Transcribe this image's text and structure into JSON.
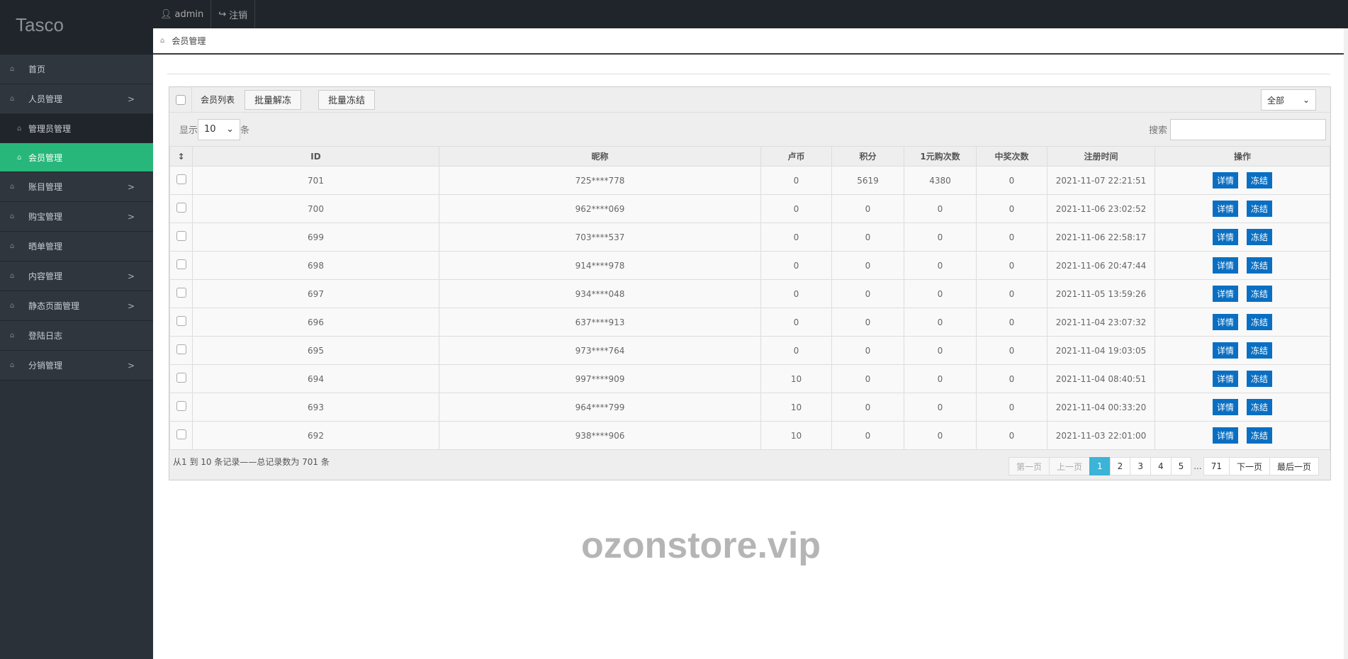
{
  "app": {
    "logo": "Tasco"
  },
  "topbar": {
    "user": "admin",
    "logout": "注销"
  },
  "sidebar": {
    "items": [
      {
        "label": "首页",
        "arrow": ""
      },
      {
        "label": "人员管理",
        "arrow": ">"
      },
      {
        "label": "管理员管理",
        "sub": true
      },
      {
        "label": "会员管理",
        "sub": true,
        "active": true
      },
      {
        "label": "账目管理",
        "arrow": ">"
      },
      {
        "label": "购宝管理",
        "arrow": ">"
      },
      {
        "label": "晒单管理",
        "arrow": ""
      },
      {
        "label": "内容管理",
        "arrow": ">"
      },
      {
        "label": "静态页面管理",
        "arrow": ">"
      },
      {
        "label": "登陆日志",
        "arrow": ""
      },
      {
        "label": "分销管理",
        "arrow": ">"
      }
    ]
  },
  "breadcrumb": "会员管理",
  "panel": {
    "title": "会员列表",
    "unfreeze_all": "批量解冻",
    "freeze_all": "批量冻结",
    "filter": "全部",
    "show_label": "显示",
    "page_size": "10",
    "show_unit": "条",
    "search_label": "搜索",
    "search_value": ""
  },
  "table": {
    "headers": [
      "ID",
      "昵称",
      "卢币",
      "积分",
      "1元购次数",
      "中奖次数",
      "注册时间",
      "操作"
    ],
    "detail_label": "详情",
    "freeze_label": "冻结",
    "rows": [
      [
        "701",
        "725****778",
        "0",
        "5619",
        "4380",
        "0",
        "2021-11-07 22:21:51"
      ],
      [
        "700",
        "962****069",
        "0",
        "0",
        "0",
        "0",
        "2021-11-06 23:02:52"
      ],
      [
        "699",
        "703****537",
        "0",
        "0",
        "0",
        "0",
        "2021-11-06 22:58:17"
      ],
      [
        "698",
        "914****978",
        "0",
        "0",
        "0",
        "0",
        "2021-11-06 20:47:44"
      ],
      [
        "697",
        "934****048",
        "0",
        "0",
        "0",
        "0",
        "2021-11-05 13:59:26"
      ],
      [
        "696",
        "637****913",
        "0",
        "0",
        "0",
        "0",
        "2021-11-04 23:07:32"
      ],
      [
        "695",
        "973****764",
        "0",
        "0",
        "0",
        "0",
        "2021-11-04 19:03:05"
      ],
      [
        "694",
        "997****909",
        "10",
        "0",
        "0",
        "0",
        "2021-11-04 08:40:51"
      ],
      [
        "693",
        "964****799",
        "10",
        "0",
        "0",
        "0",
        "2021-11-04 00:33:20"
      ],
      [
        "692",
        "938****906",
        "10",
        "0",
        "0",
        "0",
        "2021-11-03 22:01:00"
      ]
    ]
  },
  "footer": {
    "info": "从1 到 10 条记录——总记录数为 701 条"
  },
  "pager": {
    "first": "第一页",
    "prev": "上一页",
    "pages": [
      "1",
      "2",
      "3",
      "4",
      "5"
    ],
    "ellipsis": "...",
    "last_page": "71",
    "next": "下一页",
    "last": "最后一页",
    "current": "1"
  },
  "watermark": "ozonstore.vip",
  "colors": {
    "accent": "#27b77a",
    "action": "#0a6fc2",
    "page_current": "#3bb4d8"
  }
}
